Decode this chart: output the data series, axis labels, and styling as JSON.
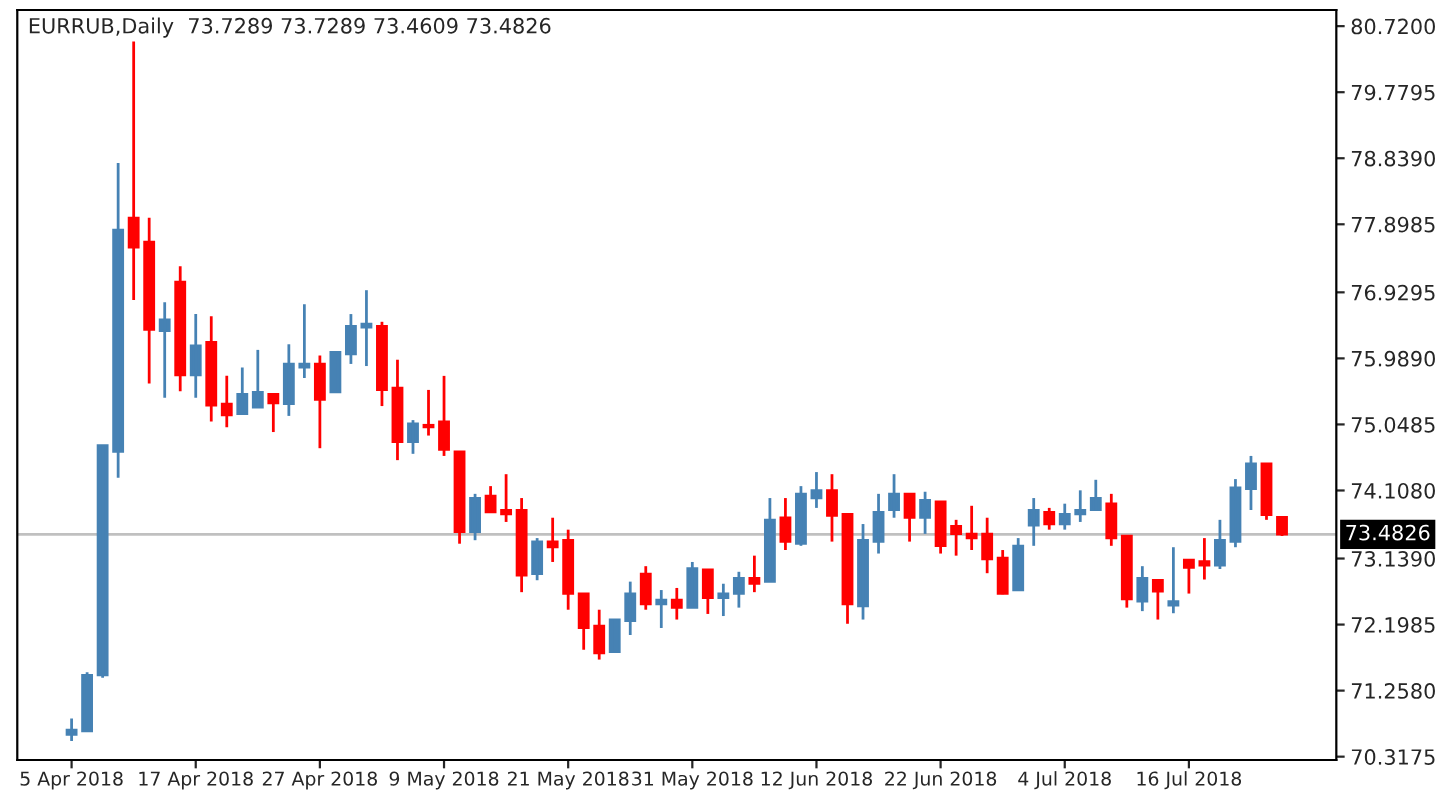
{
  "chart_data": {
    "type": "candlestick",
    "title": "EURRUB,Daily  73.7289 73.7289 73.4609 73.4826",
    "categories": [
      "5 Apr 2018",
      null,
      null,
      null,
      null,
      null,
      null,
      null,
      "17 Apr 2018",
      null,
      null,
      null,
      null,
      null,
      null,
      null,
      "27 Apr 2018",
      null,
      null,
      null,
      null,
      null,
      null,
      null,
      "9 May 2018",
      null,
      null,
      null,
      null,
      null,
      null,
      null,
      "21 May 2018",
      null,
      null,
      null,
      null,
      null,
      null,
      null,
      "31 May 2018",
      null,
      null,
      null,
      null,
      null,
      null,
      null,
      "12 Jun 2018",
      null,
      null,
      null,
      null,
      null,
      null,
      null,
      "22 Jun 2018",
      null,
      null,
      null,
      null,
      null,
      null,
      null,
      "4 Jul 2018",
      null,
      null,
      null,
      null,
      null,
      null,
      null,
      "16 Jul 2018",
      null,
      null,
      null,
      null,
      null,
      null
    ],
    "ohlc": [
      [
        70.63,
        70.86,
        70.54,
        70.7
      ],
      [
        70.68,
        71.52,
        70.68,
        71.48
      ],
      [
        71.48,
        74.75,
        71.44,
        74.75
      ],
      [
        74.66,
        78.77,
        74.29,
        77.82
      ],
      [
        77.99,
        80.5,
        76.82,
        77.57
      ],
      [
        77.65,
        77.99,
        75.63,
        76.4
      ],
      [
        76.38,
        76.79,
        75.43,
        76.54
      ],
      [
        77.08,
        77.3,
        75.52,
        75.75
      ],
      [
        75.75,
        76.62,
        75.43,
        76.17
      ],
      [
        76.22,
        76.59,
        75.09,
        75.32
      ],
      [
        75.34,
        75.74,
        75.01,
        75.18
      ],
      [
        75.2,
        75.86,
        75.2,
        75.48
      ],
      [
        75.29,
        76.11,
        75.29,
        75.51
      ],
      [
        75.48,
        75.48,
        74.94,
        75.35
      ],
      [
        75.34,
        76.19,
        75.17,
        75.91
      ],
      [
        75.86,
        76.76,
        75.71,
        75.91
      ],
      [
        75.91,
        76.03,
        74.71,
        75.4
      ],
      [
        75.51,
        76.08,
        75.51,
        76.08
      ],
      [
        76.05,
        76.62,
        75.91,
        76.45
      ],
      [
        76.43,
        76.96,
        75.88,
        76.48
      ],
      [
        76.45,
        76.51,
        75.31,
        75.54
      ],
      [
        75.57,
        75.97,
        74.54,
        74.8
      ],
      [
        74.8,
        75.11,
        74.63,
        75.06
      ],
      [
        75.04,
        75.54,
        74.89,
        75.01
      ],
      [
        75.09,
        75.74,
        74.6,
        74.69
      ],
      [
        74.66,
        74.66,
        73.35,
        73.52
      ],
      [
        73.52,
        74.06,
        73.4,
        74.0
      ],
      [
        74.03,
        74.17,
        73.8,
        73.8
      ],
      [
        73.83,
        74.34,
        73.66,
        73.77
      ],
      [
        73.83,
        74.0,
        72.66,
        72.9
      ],
      [
        72.92,
        73.43,
        72.83,
        73.38
      ],
      [
        73.38,
        73.72,
        73.09,
        73.3
      ],
      [
        73.4,
        73.55,
        72.41,
        72.64
      ],
      [
        72.64,
        72.64,
        71.84,
        72.15
      ],
      [
        72.18,
        72.41,
        71.7,
        71.79
      ],
      [
        71.81,
        72.27,
        71.81,
        72.27
      ],
      [
        72.25,
        72.81,
        72.05,
        72.64
      ],
      [
        72.92,
        73.03,
        72.41,
        72.49
      ],
      [
        72.49,
        72.69,
        72.15,
        72.55
      ],
      [
        72.55,
        72.72,
        72.27,
        72.44
      ],
      [
        72.44,
        73.09,
        72.44,
        73.0
      ],
      [
        72.98,
        72.98,
        72.35,
        72.58
      ],
      [
        72.58,
        72.78,
        72.32,
        72.64
      ],
      [
        72.64,
        72.95,
        72.44,
        72.86
      ],
      [
        72.86,
        73.18,
        72.66,
        72.78
      ],
      [
        72.81,
        74.0,
        72.81,
        73.69
      ],
      [
        73.72,
        74.0,
        73.26,
        73.38
      ],
      [
        73.35,
        74.17,
        73.32,
        74.06
      ],
      [
        74.0,
        74.37,
        73.86,
        74.11
      ],
      [
        74.11,
        74.34,
        73.38,
        73.75
      ],
      [
        73.77,
        73.77,
        72.21,
        72.49
      ],
      [
        72.46,
        73.63,
        72.27,
        73.4
      ],
      [
        73.38,
        74.06,
        73.21,
        73.8
      ],
      [
        73.83,
        74.34,
        73.72,
        74.06
      ],
      [
        74.06,
        74.06,
        73.38,
        73.72
      ],
      [
        73.72,
        74.09,
        73.49,
        73.97
      ],
      [
        73.95,
        73.95,
        73.21,
        73.32
      ],
      [
        73.6,
        73.69,
        73.18,
        73.49
      ],
      [
        73.49,
        73.89,
        73.26,
        73.43
      ],
      [
        73.49,
        73.72,
        72.93,
        73.13
      ],
      [
        73.15,
        73.26,
        72.63,
        72.64
      ],
      [
        72.69,
        73.43,
        72.69,
        73.32
      ],
      [
        73.61,
        74.0,
        73.32,
        73.83
      ],
      [
        73.8,
        73.86,
        73.55,
        73.63
      ],
      [
        73.63,
        73.92,
        73.55,
        73.77
      ],
      [
        73.77,
        74.11,
        73.66,
        73.83
      ],
      [
        73.83,
        74.26,
        73.83,
        74.0
      ],
      [
        73.92,
        74.06,
        73.32,
        73.43
      ],
      [
        73.46,
        73.46,
        72.44,
        72.56
      ],
      [
        72.53,
        73.03,
        72.39,
        72.86
      ],
      [
        72.83,
        72.83,
        72.27,
        72.67
      ],
      [
        72.47,
        73.3,
        72.36,
        72.53
      ],
      [
        73.12,
        73.12,
        72.64,
        73.01
      ],
      [
        73.1,
        73.43,
        72.84,
        73.04
      ],
      [
        73.04,
        73.69,
        72.99,
        73.4
      ],
      [
        73.38,
        74.27,
        73.3,
        74.15
      ],
      [
        74.13,
        74.6,
        73.83,
        74.49
      ],
      [
        74.49,
        74.49,
        73.69,
        73.76
      ],
      [
        73.7289,
        73.7289,
        73.4609,
        73.4826
      ]
    ],
    "colors": [
      "#4682b4",
      "#4682b4",
      "#4682b4",
      "#4682b4",
      "#ff0000",
      "#ff0000",
      "#4682b4",
      "#ff0000",
      "#4682b4",
      "#ff0000",
      "#ff0000",
      "#4682b4",
      "#4682b4",
      "#ff0000",
      "#4682b4",
      "#4682b4",
      "#ff0000",
      "#4682b4",
      "#4682b4",
      "#4682b4",
      "#ff0000",
      "#ff0000",
      "#4682b4",
      "#ff0000",
      "#ff0000",
      "#ff0000",
      "#4682b4",
      "#ff0000",
      "#ff0000",
      "#ff0000",
      "#4682b4",
      "#ff0000",
      "#ff0000",
      "#ff0000",
      "#ff0000",
      "#4682b4",
      "#4682b4",
      "#ff0000",
      "#4682b4",
      "#ff0000",
      "#4682b4",
      "#ff0000",
      "#4682b4",
      "#4682b4",
      "#ff0000",
      "#4682b4",
      "#ff0000",
      "#4682b4",
      "#4682b4",
      "#ff0000",
      "#ff0000",
      "#4682b4",
      "#4682b4",
      "#4682b4",
      "#ff0000",
      "#4682b4",
      "#ff0000",
      "#ff0000",
      "#ff0000",
      "#ff0000",
      "#ff0000",
      "#4682b4",
      "#4682b4",
      "#ff0000",
      "#4682b4",
      "#4682b4",
      "#4682b4",
      "#ff0000",
      "#ff0000",
      "#4682b4",
      "#ff0000",
      "#4682b4",
      "#ff0000",
      "#ff0000",
      "#4682b4",
      "#4682b4",
      "#4682b4",
      "#ff0000",
      "#ff0000"
    ],
    "ylim": [
      70.27,
      80.95
    ],
    "yticks": [
      {
        "value": 80.72,
        "label": "80.7200"
      },
      79.7795,
      {
        "value": 78.839,
        "label": "78.8390"
      },
      77.8985,
      76.9295,
      {
        "value": 75.989,
        "label": "75.9890"
      },
      75.0485,
      {
        "value": 74.108,
        "label": "74.1080"
      },
      {
        "value": 73.139,
        "label": "73.1390"
      },
      72.1985,
      {
        "value": 71.258,
        "label": "71.2580"
      },
      70.3175
    ],
    "ref_lines": [
      {
        "axis": "y",
        "value": 73.4826,
        "label": "73.4826",
        "color": "#c0c0c0"
      }
    ],
    "grid": false,
    "legend": false
  }
}
